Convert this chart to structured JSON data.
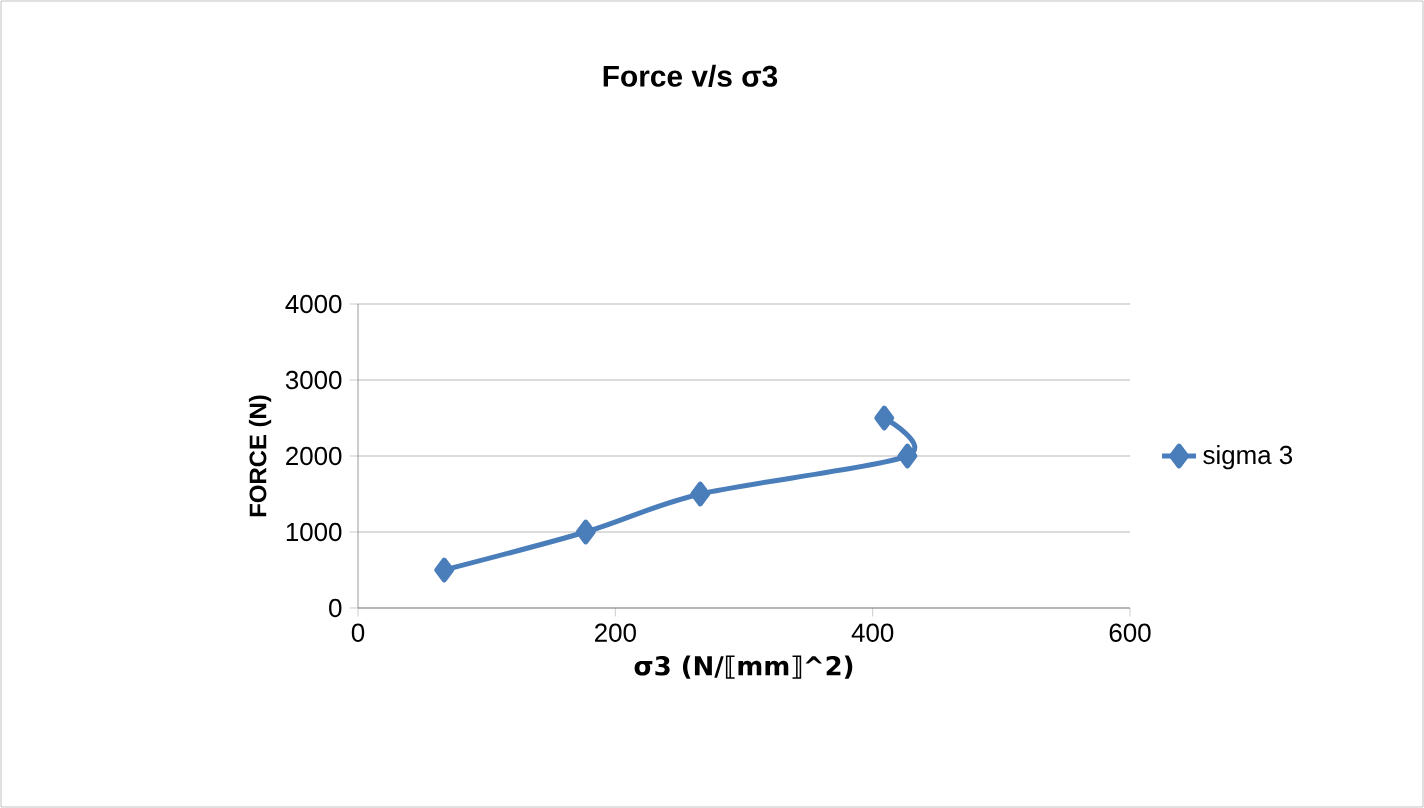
{
  "chart_data": {
    "type": "line",
    "title": "Force v/s σ3",
    "xlabel": "σ3 (N/⟦mm⟧^2)",
    "ylabel": "FORCE (N)",
    "series": [
      {
        "name": "sigma 3",
        "color": "#4a7ebb",
        "x": [
          67,
          177,
          266,
          427,
          409
        ],
        "values": [
          500,
          1000,
          1500,
          2000,
          2500
        ]
      }
    ],
    "xlim": [
      0,
      600
    ],
    "xticks": [
      0,
      200,
      400,
      600
    ],
    "ylim": [
      0,
      4000
    ],
    "yticks": [
      0,
      1000,
      2000,
      3000,
      4000
    ],
    "grid": "y",
    "legend": "right",
    "marker": "diamond",
    "line_style": "solid"
  }
}
